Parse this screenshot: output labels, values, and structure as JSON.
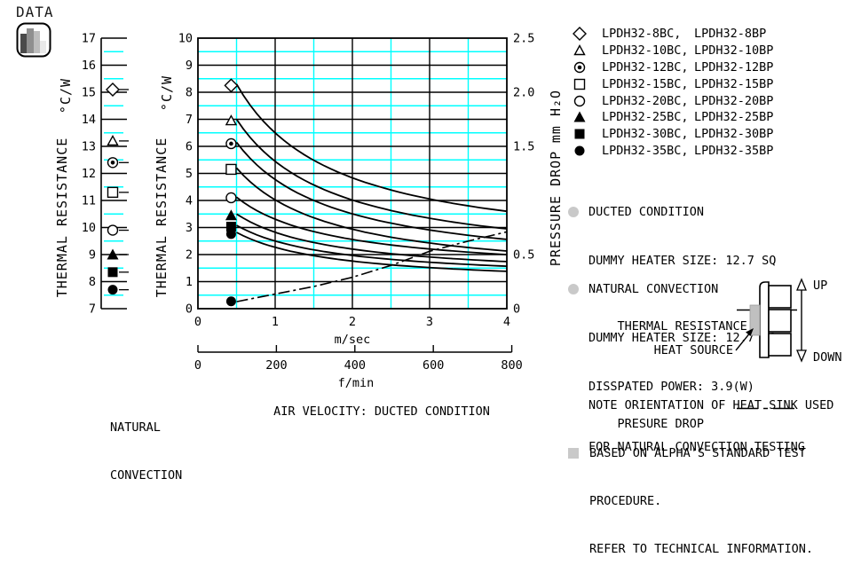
{
  "page": {
    "badge": "DATA"
  },
  "colors": {
    "ink": "#000000",
    "grid_minor": "#00ffff",
    "bullet_gray": "#c9c9c9",
    "heat_source_gray": "#c0c0c0",
    "icon_bars": [
      "#4a4a4a",
      "#8f8f8f",
      "#bdbdbd",
      "#e9e9e9"
    ]
  },
  "chart_data": [
    {
      "id": "natural-convection-strip",
      "type": "scatter",
      "title_lines": [
        "NATURAL",
        "CONVECTION"
      ],
      "ylabel": "THERMAL RESISTANCE",
      "y_unit": "°C/W",
      "ylim": [
        7,
        17
      ],
      "y_major_step": 1,
      "y_minor_step": 0.5,
      "grid": true,
      "points": [
        {
          "model": "LPDH32-8BC, LPDH32-8BP",
          "marker": "diamond-open",
          "thermal_resistance": 15.1
        },
        {
          "model": "LPDH32-10BC, LPDH32-10BP",
          "marker": "triangle-open",
          "thermal_resistance": 13.2
        },
        {
          "model": "LPDH32-12BC, LPDH32-12BP",
          "marker": "fisheye",
          "thermal_resistance": 12.4
        },
        {
          "model": "LPDH32-15BC, LPDH32-15BP",
          "marker": "square-open",
          "thermal_resistance": 11.3
        },
        {
          "model": "LPDH32-20BC, LPDH32-20BP",
          "marker": "circle-open",
          "thermal_resistance": 9.9
        },
        {
          "model": "LPDH32-25BC, LPDH32-25BP",
          "marker": "triangle-filled",
          "thermal_resistance": 9.0
        },
        {
          "model": "LPDH32-30BC, LPDH32-30BP",
          "marker": "square-filled",
          "thermal_resistance": 8.35
        },
        {
          "model": "LPDH32-35BC, LPDH32-35BP",
          "marker": "circle-filled",
          "thermal_resistance": 7.7
        }
      ]
    },
    {
      "id": "ducted-condition-chart",
      "type": "line",
      "title": "AIR VELOCITY:  DUCTED CONDITION",
      "x_axis_primary": {
        "label": "m/sec",
        "min": 0,
        "max": 4,
        "ticks": [
          0,
          1,
          2,
          3,
          4
        ]
      },
      "x_axis_secondary": {
        "label": "f/min",
        "min": 0,
        "max": 800,
        "ticks": [
          0,
          200,
          400,
          600,
          800
        ]
      },
      "y_axis_left": {
        "label": "THERMAL RESISTANCE",
        "unit": "°C/W",
        "min": 0,
        "max": 10,
        "major_step": 1,
        "minor_step": 0.5
      },
      "y_axis_right": {
        "label": "PRESSURE DROP",
        "unit": "mm H₂O",
        "min": 0,
        "max": 2.5,
        "tick_labels": [
          [
            "0",
            0
          ],
          [
            "0.5",
            0.5
          ],
          [
            "1.5",
            1.5
          ],
          [
            "2.0",
            2.0
          ],
          [
            "2.5",
            2.5
          ]
        ]
      },
      "grid": true,
      "thermal_series": [
        {
          "model": "LPDH32-8BC, LPDH32-8BP",
          "marker": "diamond-open",
          "marker_point": [
            0.43,
            8.25
          ],
          "curve": {
            "x_start": 0.5,
            "y_start": 8.3,
            "x_end": 4,
            "y_end": 3.6
          }
        },
        {
          "model": "LPDH32-10BC, LPDH32-10BP",
          "marker": "triangle-open",
          "marker_point": [
            0.43,
            6.95
          ],
          "curve": {
            "x_start": 0.5,
            "y_start": 7.0,
            "x_end": 4,
            "y_end": 2.95
          }
        },
        {
          "model": "LPDH32-12BC, LPDH32-12BP",
          "marker": "fisheye",
          "marker_point": [
            0.43,
            6.1
          ],
          "curve": {
            "x_start": 0.5,
            "y_start": 6.15,
            "x_end": 4,
            "y_end": 2.56
          }
        },
        {
          "model": "LPDH32-15BC, LPDH32-15BP",
          "marker": "square-open",
          "marker_point": [
            0.43,
            5.15
          ],
          "curve": {
            "x_start": 0.5,
            "y_start": 5.2,
            "x_end": 4,
            "y_end": 2.13
          }
        },
        {
          "model": "LPDH32-20BC, LPDH32-20BP",
          "marker": "circle-open",
          "marker_point": [
            0.43,
            4.1
          ],
          "curve": {
            "x_start": 0.5,
            "y_start": 4.12,
            "x_end": 4,
            "y_end": 2.0
          }
        },
        {
          "model": "LPDH32-25BC, LPDH32-25BP",
          "marker": "triangle-filled",
          "marker_point": [
            0.43,
            3.45
          ],
          "curve": {
            "x_start": 0.5,
            "y_start": 3.5,
            "x_end": 4,
            "y_end": 1.74
          }
        },
        {
          "model": "LPDH32-30BC, LPDH32-30BP",
          "marker": "square-filled",
          "marker_point": [
            0.43,
            3.03
          ],
          "curve": {
            "x_start": 0.5,
            "y_start": 3.08,
            "x_end": 4,
            "y_end": 1.57
          }
        },
        {
          "model": "LPDH32-35BC, LPDH32-35BP",
          "marker": "circle-filled",
          "marker_point": [
            0.43,
            2.76
          ],
          "curve": {
            "x_start": 0.5,
            "y_start": 2.82,
            "x_end": 4,
            "y_end": 1.38
          }
        }
      ],
      "pressure_series": {
        "label": "PRESSURE DROP",
        "line_style": "dash-dot",
        "marker": "circle-filled",
        "marker_point_left_units": [
          0.43,
          0.27
        ],
        "points": [
          {
            "x": 0.5,
            "mm": 0.065
          },
          {
            "x": 1.0,
            "mm": 0.135
          },
          {
            "x": 1.5,
            "mm": 0.205
          },
          {
            "x": 2.0,
            "mm": 0.29
          },
          {
            "x": 2.5,
            "mm": 0.4
          },
          {
            "x": 3.0,
            "mm": 0.53
          },
          {
            "x": 3.5,
            "mm": 0.625
          },
          {
            "x": 4.0,
            "mm": 0.71
          }
        ]
      }
    }
  ],
  "legend": {
    "items": [
      {
        "marker": "diamond-open",
        "label_bc": "LPDH32-8BC,",
        "label_bp": "LPDH32-8BP"
      },
      {
        "marker": "triangle-open",
        "label_bc": "LPDH32-10BC,",
        "label_bp": "LPDH32-10BP"
      },
      {
        "marker": "fisheye",
        "label_bc": "LPDH32-12BC,",
        "label_bp": "LPDH32-12BP"
      },
      {
        "marker": "square-open",
        "label_bc": "LPDH32-15BC,",
        "label_bp": "LPDH32-15BP"
      },
      {
        "marker": "circle-open",
        "label_bc": "LPDH32-20BC,",
        "label_bp": "LPDH32-20BP"
      },
      {
        "marker": "triangle-filled",
        "label_bc": "LPDH32-25BC,",
        "label_bp": "LPDH32-25BP"
      },
      {
        "marker": "square-filled",
        "label_bc": "LPDH32-30BC,",
        "label_bp": "LPDH32-30BP"
      },
      {
        "marker": "circle-filled",
        "label_bc": "LPDH32-35BC,",
        "label_bp": "LPDH32-35BP"
      }
    ]
  },
  "notes": {
    "ducted": {
      "title": "DUCTED CONDITION",
      "heater": "DUMMY HEATER SIZE: 12.7 SQ",
      "thermal_label": "THERMAL RESISTANCE",
      "pressure_label": "PRESURE DROP"
    },
    "natural": {
      "title": "NATURAL CONVECTION",
      "heater": "DUMMY HEATER SIZE: 12.7 SQ",
      "power": "DISSPATED POWER: 3.9(W)"
    },
    "orientation": [
      "NOTE ORIENTATION OF HEAT SINK USED",
      "FOR NATURAL CONVECTION TESTING"
    ],
    "footer": [
      "BASED ON ALPHA'S STANDARD TEST",
      "PROCEDURE.",
      "REFER TO TECHNICAL INFORMATION."
    ]
  },
  "diagram": {
    "heat_source_label": "HEAT SOURCE",
    "up_label": "UP",
    "down_label": "DOWN"
  }
}
